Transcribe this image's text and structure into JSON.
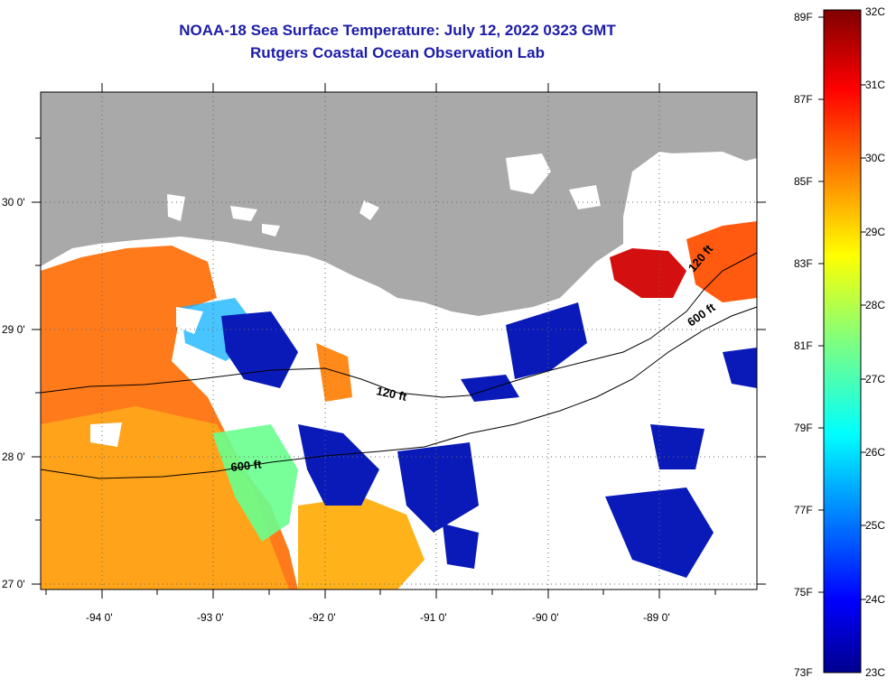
{
  "header": {
    "title": "NOAA-18 Sea Surface Temperature:  July 12, 2022 0323 GMT",
    "subtitle": "Rutgers Coastal Ocean Observation Lab"
  },
  "axes": {
    "lon_labels": [
      "-94 0'",
      "-93 0'",
      "-92 0'",
      "-91 0'",
      "-90 0'",
      "-89 0'"
    ],
    "lat_labels": [
      "30 0'",
      "29 0'",
      "28 0'",
      "27 0'"
    ],
    "lon_range": [
      -94.55,
      -88.1
    ],
    "lat_range": [
      26.95,
      30.85
    ]
  },
  "contours": {
    "label_120": "120 ft",
    "label_600": "600 ft"
  },
  "colorbar": {
    "fahrenheit_labels": [
      "89F",
      "87F",
      "85F",
      "83F",
      "81F",
      "79F",
      "77F",
      "75F",
      "73F"
    ],
    "celsius_labels": [
      "32C",
      "31C",
      "30C",
      "29C",
      "28C",
      "27C",
      "26C",
      "25C",
      "24C",
      "23C"
    ],
    "range_c": [
      23,
      32
    ],
    "colormap": "jet",
    "land_color": "#a9a9a9",
    "no_data_color": "#ffffff"
  }
}
